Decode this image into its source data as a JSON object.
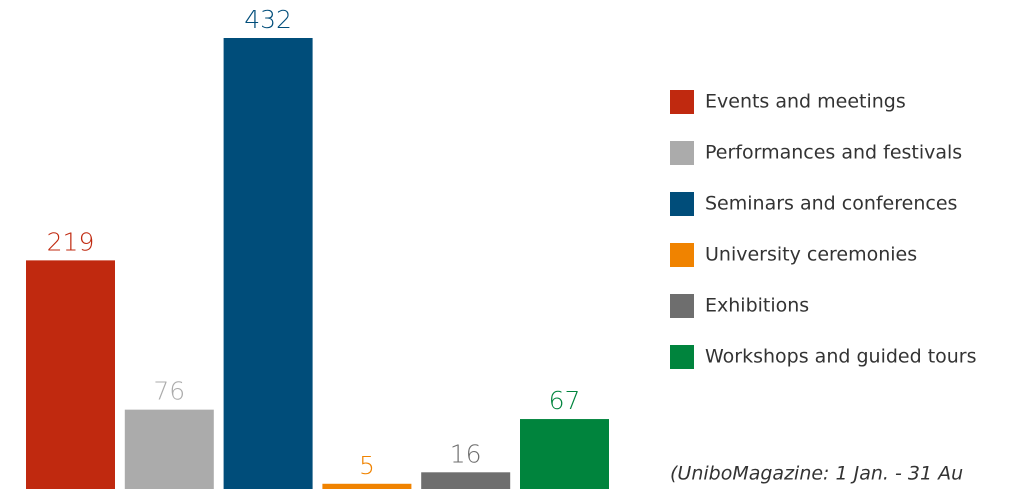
{
  "chart_data": {
    "type": "bar",
    "categories": [
      "Events and meetings",
      "Performances and festivals",
      "Seminars and conferences",
      "University ceremonies",
      "Exhibitions",
      "Workshops and guided tours"
    ],
    "values": [
      219,
      76,
      432,
      5,
      16,
      67
    ],
    "colors": [
      "#c0290f",
      "#ababab",
      "#004d7a",
      "#f08300",
      "#6e6e6e",
      "#00843d"
    ],
    "note": "(UniboMagazine: 1 Jan. - 31 Au"
  }
}
